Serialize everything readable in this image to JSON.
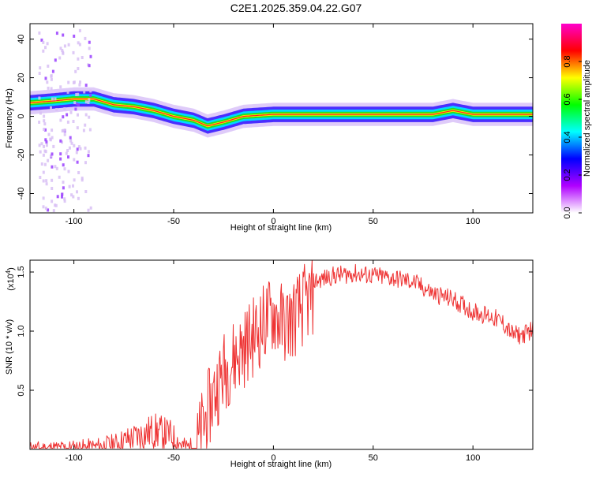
{
  "page_title": "C2E1.2025.359.04.22.G07",
  "chart_data": [
    {
      "type": "heatmap",
      "title": "C2E1.2025.359.04.22.G07",
      "xlabel": "Height of straight line (km)",
      "ylabel": "Frequency (Hz)",
      "xlim": [
        -122,
        130
      ],
      "ylim": [
        -50,
        48
      ],
      "x_ticks": [
        -100,
        -50,
        0,
        50,
        100
      ],
      "y_ticks": [
        40,
        20,
        0,
        -20,
        -40
      ],
      "colorbar": {
        "label": "Normalized spectral amplitude",
        "range": [
          0,
          1
        ],
        "ticks": [
          "0.0",
          "0.2",
          "0.4",
          "0.6",
          "0.8"
        ],
        "colors": [
          "#ffffff",
          "#b000ff",
          "#0000ff",
          "#00ffff",
          "#00ff00",
          "#ffff00",
          "#ff0000",
          "#ff00cc"
        ]
      },
      "ridge": {
        "x": [
          -122,
          -110,
          -100,
          -90,
          -80,
          -70,
          -60,
          -50,
          -40,
          -33,
          -25,
          -15,
          0,
          20,
          40,
          60,
          80,
          90,
          100,
          130
        ],
        "freq": [
          7,
          8,
          9,
          9,
          6,
          5,
          3,
          0,
          -2,
          -5,
          -3,
          0,
          1,
          1,
          1,
          1,
          1,
          3,
          1,
          1
        ]
      }
    },
    {
      "type": "line",
      "xlabel": "Height of straight line (km)",
      "ylabel": "SNR (10 * v/v)",
      "y_scale_label": "(x10",
      "y_scale_exponent": "4",
      "xlim": [
        -122,
        130
      ],
      "ylim": [
        0,
        1.6
      ],
      "x_ticks": [
        -100,
        -50,
        0,
        50,
        100
      ],
      "y_ticks": [
        "0.5",
        "1.0",
        "1.5"
      ],
      "line_color": "#ee3333",
      "envelope": {
        "x": [
          -122,
          -100,
          -90,
          -80,
          -70,
          -60,
          -52,
          -45,
          -40,
          -35,
          -30,
          -25,
          -20,
          -15,
          -10,
          -5,
          0,
          5,
          10,
          15,
          20,
          30,
          40,
          50,
          60,
          70,
          80,
          90,
          100,
          110,
          115,
          120,
          125,
          130
        ],
        "y": [
          0.03,
          0.04,
          0.05,
          0.08,
          0.15,
          0.22,
          0.18,
          0.06,
          0.05,
          0.35,
          0.6,
          0.8,
          0.9,
          1.0,
          1.1,
          1.2,
          1.3,
          1.2,
          1.25,
          1.35,
          1.45,
          1.5,
          1.52,
          1.5,
          1.48,
          1.45,
          1.35,
          1.3,
          1.2,
          1.15,
          1.1,
          1.0,
          1.0,
          1.05
        ]
      }
    }
  ]
}
